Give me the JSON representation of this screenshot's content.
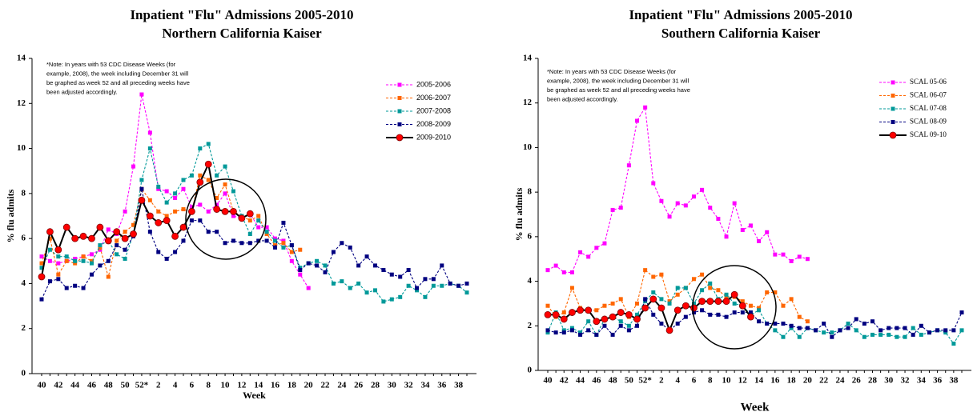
{
  "chart_data": [
    {
      "type": "line",
      "title": "Inpatient \"Flu\" Admissions 2005-2010",
      "subtitle": "Northern California Kaiser",
      "xlabel": "Week",
      "ylabel": "% flu admits",
      "note": [
        "*Note: In years with 53 CDC Disease Weeks (for",
        "example, 2008), the week including December 31 will",
        "be graphed as week 52 and all preceding weeks have",
        "been adjusted accordingly."
      ],
      "categories": [
        "40",
        null,
        "42",
        null,
        "44",
        null,
        "46",
        null,
        "48",
        null,
        "50",
        null,
        "52*",
        null,
        "2",
        null,
        "4",
        null,
        "6",
        null,
        "8",
        null,
        "10",
        null,
        "12",
        null,
        "14",
        null,
        "16",
        null,
        "18",
        null,
        "20",
        null,
        "22",
        null,
        "24",
        null,
        "26",
        null,
        "28",
        null,
        "30",
        null,
        "32",
        null,
        "34",
        null,
        "36",
        null,
        "38",
        null
      ],
      "ylim": [
        0,
        14
      ],
      "yticks": [
        0,
        2,
        4,
        6,
        8,
        10,
        12,
        14
      ],
      "grid": false,
      "legend": "upper right",
      "series": [
        {
          "name": "2005-2006",
          "color": "#ff00ff",
          "linestyle": "dashed",
          "marker": "square",
          "values": [
            5.2,
            5.0,
            4.9,
            5.0,
            5.1,
            5.2,
            5.3,
            5.5,
            6.4,
            6.2,
            7.2,
            9.2,
            12.4,
            10.7,
            8.2,
            8.1,
            7.8,
            8.2,
            7.4,
            7.5,
            7.2,
            7.5,
            8.0,
            7.0,
            6.9,
            7.1,
            6.5,
            6.5,
            6.0,
            5.9,
            5.0,
            4.4,
            3.8,
            null,
            null,
            null,
            null,
            null,
            null,
            null,
            null,
            null,
            null,
            null,
            null,
            null,
            null,
            null,
            null,
            null,
            null,
            null
          ]
        },
        {
          "name": "2006-2007",
          "color": "#ff6600",
          "linestyle": "dashed",
          "marker": "square",
          "values": [
            4.9,
            6.0,
            4.4,
            5.0,
            4.9,
            5.2,
            5.0,
            5.6,
            4.3,
            5.9,
            6.3,
            6.6,
            8.2,
            7.7,
            7.2,
            7.0,
            7.2,
            7.3,
            7.2,
            8.8,
            8.6,
            7.8,
            8.4,
            7.2,
            7.0,
            6.8,
            7.0,
            6.2,
            5.7,
            5.8,
            5.4,
            5.5,
            null,
            null,
            null,
            null,
            null,
            null,
            null,
            null,
            null,
            null,
            null,
            null,
            null,
            null,
            null,
            null,
            null,
            null,
            null,
            null
          ]
        },
        {
          "name": "2007-2008",
          "color": "#009999",
          "linestyle": "dashed",
          "marker": "square",
          "values": [
            4.7,
            5.5,
            5.2,
            5.2,
            5.0,
            5.0,
            4.9,
            5.7,
            5.9,
            5.3,
            5.1,
            6.2,
            8.6,
            10.0,
            8.3,
            7.6,
            8.0,
            8.6,
            8.8,
            10.0,
            10.2,
            8.8,
            9.2,
            8.1,
            7.0,
            6.2,
            6.8,
            6.3,
            5.9,
            5.6,
            5.7,
            4.7,
            4.9,
            5.0,
            4.8,
            4.0,
            4.1,
            3.8,
            4.0,
            3.6,
            3.7,
            3.2,
            3.3,
            3.4,
            3.9,
            3.7,
            3.4,
            3.9,
            3.9,
            4.0,
            3.9,
            3.6
          ]
        },
        {
          "name": "2008-2009",
          "color": "#000080",
          "linestyle": "dashed",
          "marker": "square",
          "values": [
            3.3,
            4.1,
            4.2,
            3.8,
            3.9,
            3.8,
            4.4,
            4.8,
            5.0,
            5.7,
            5.5,
            6.1,
            8.2,
            6.3,
            5.4,
            5.1,
            5.4,
            5.9,
            6.8,
            6.8,
            6.3,
            6.3,
            5.8,
            5.9,
            5.8,
            5.8,
            5.9,
            5.9,
            5.6,
            6.7,
            5.7,
            4.6,
            4.9,
            4.8,
            4.5,
            5.4,
            5.8,
            5.6,
            4.8,
            5.2,
            4.8,
            4.6,
            4.4,
            4.3,
            4.6,
            3.8,
            4.2,
            4.2,
            4.8,
            4.0,
            3.9,
            4.0
          ]
        },
        {
          "name": "2009-2010",
          "color": "#ff0000",
          "line_color": "#000000",
          "linestyle": "solid",
          "marker": "circle",
          "values": [
            4.3,
            6.3,
            5.5,
            6.5,
            6.0,
            6.1,
            6.0,
            6.5,
            5.9,
            6.3,
            6.0,
            6.2,
            7.7,
            7.0,
            6.7,
            6.8,
            6.1,
            6.5,
            7.2,
            8.5,
            9.3,
            7.3,
            7.2,
            7.2,
            6.9,
            7.1,
            null,
            null,
            null,
            null,
            null,
            null,
            null,
            null,
            null,
            null,
            null,
            null,
            null,
            null,
            null,
            null,
            null,
            null,
            null,
            null,
            null,
            null,
            null,
            null,
            null,
            null
          ]
        }
      ]
    },
    {
      "type": "line",
      "title": "Inpatient \"Flu\" Admissions 2005-2010",
      "subtitle": "Southern California Kaiser",
      "xlabel": "Week",
      "ylabel": "% flu admits",
      "note": [
        "*Note: In years with 53 CDC Disease Weeks (for",
        "example, 2008), the week including December 31 will",
        "be graphed as week 52 and all preceding weeks have",
        "been adjusted accordingly."
      ],
      "categories": [
        "40",
        null,
        "42",
        null,
        "44",
        null,
        "46",
        null,
        "48",
        null,
        "50",
        null,
        "52*",
        null,
        "2",
        null,
        "4",
        null,
        "6",
        null,
        "8",
        null,
        "10",
        null,
        "12",
        null,
        "14",
        null,
        "16",
        null,
        "18",
        null,
        "20",
        null,
        "22",
        null,
        "24",
        null,
        "26",
        null,
        "28",
        null,
        "30",
        null,
        "32",
        null,
        "34",
        null,
        "36",
        null,
        "38",
        null
      ],
      "ylim": [
        0,
        14
      ],
      "yticks": [
        0,
        2,
        4,
        6,
        8,
        10,
        12,
        14
      ],
      "grid": false,
      "legend": "upper right",
      "series": [
        {
          "name": "SCAL 05-06",
          "color": "#ff00ff",
          "linestyle": "dashed",
          "marker": "square",
          "values": [
            4.5,
            4.7,
            4.4,
            4.4,
            5.3,
            5.1,
            5.5,
            5.7,
            7.2,
            7.3,
            9.2,
            11.2,
            11.8,
            8.4,
            7.6,
            6.9,
            7.5,
            7.4,
            7.8,
            8.1,
            7.3,
            6.8,
            6.0,
            7.5,
            6.3,
            6.5,
            5.8,
            6.2,
            5.2,
            5.2,
            4.9,
            5.1,
            5.0,
            null,
            null,
            null,
            null,
            null,
            null,
            null,
            null,
            null,
            null,
            null,
            null,
            null,
            null,
            null,
            null,
            null,
            null,
            null
          ]
        },
        {
          "name": "SCAL 06-07",
          "color": "#ff6600",
          "linestyle": "dashed",
          "marker": "square",
          "values": [
            2.9,
            2.4,
            2.6,
            3.7,
            2.8,
            2.7,
            2.7,
            2.9,
            3.0,
            3.2,
            2.4,
            3.0,
            4.5,
            4.2,
            4.3,
            3.1,
            3.4,
            3.7,
            4.1,
            4.3,
            3.7,
            3.6,
            3.3,
            3.3,
            3.1,
            2.9,
            2.8,
            3.5,
            3.5,
            2.9,
            3.2,
            2.4,
            2.2,
            null,
            null,
            null,
            null,
            null,
            null,
            null,
            null,
            null,
            null,
            null,
            null,
            null,
            null,
            null,
            null,
            null,
            null,
            null
          ]
        },
        {
          "name": "SCAL 07-08",
          "color": "#009999",
          "linestyle": "dashed",
          "marker": "square",
          "values": [
            1.7,
            2.6,
            1.8,
            1.9,
            1.7,
            2.2,
            1.6,
            2.3,
            2.4,
            2.2,
            2.0,
            2.5,
            3.1,
            3.5,
            3.2,
            3.0,
            3.7,
            3.7,
            3.0,
            3.6,
            3.9,
            3.2,
            3.4,
            3.0,
            2.9,
            2.5,
            2.7,
            2.1,
            1.8,
            1.5,
            1.9,
            1.5,
            1.9,
            1.8,
            1.7,
            1.7,
            1.8,
            2.1,
            1.8,
            1.5,
            1.6,
            1.6,
            1.6,
            1.5,
            1.5,
            1.9,
            1.6,
            1.7,
            1.8,
            1.7,
            1.2,
            1.8
          ]
        },
        {
          "name": "SCAL 08-09",
          "color": "#000080",
          "linestyle": "dashed",
          "marker": "square",
          "values": [
            1.8,
            1.7,
            1.7,
            1.8,
            1.6,
            1.8,
            1.6,
            2.0,
            1.6,
            2.0,
            1.8,
            2.0,
            3.2,
            2.5,
            2.1,
            1.8,
            2.1,
            2.4,
            2.6,
            2.7,
            2.5,
            2.5,
            2.4,
            2.6,
            2.6,
            2.6,
            2.2,
            2.1,
            2.1,
            2.1,
            2.0,
            1.9,
            1.9,
            1.8,
            2.1,
            1.5,
            1.8,
            1.9,
            2.3,
            2.1,
            2.2,
            1.8,
            1.9,
            1.9,
            1.9,
            1.6,
            2.0,
            1.7,
            1.8,
            1.8,
            1.8,
            2.6
          ]
        },
        {
          "name": "SCAL 09-10",
          "color": "#ff0000",
          "line_color": "#000000",
          "linestyle": "solid",
          "marker": "circle",
          "values": [
            2.5,
            2.5,
            2.3,
            2.6,
            2.7,
            2.7,
            2.2,
            2.3,
            2.4,
            2.6,
            2.5,
            2.3,
            2.8,
            3.2,
            2.8,
            1.8,
            2.7,
            2.9,
            2.8,
            3.1,
            3.1,
            3.1,
            3.1,
            3.4,
            2.9,
            2.4,
            null,
            null,
            null,
            null,
            null,
            null,
            null,
            null,
            null,
            null,
            null,
            null,
            null,
            null,
            null,
            null,
            null,
            null,
            null,
            null,
            null,
            null,
            null,
            null,
            null,
            null
          ]
        }
      ]
    }
  ]
}
